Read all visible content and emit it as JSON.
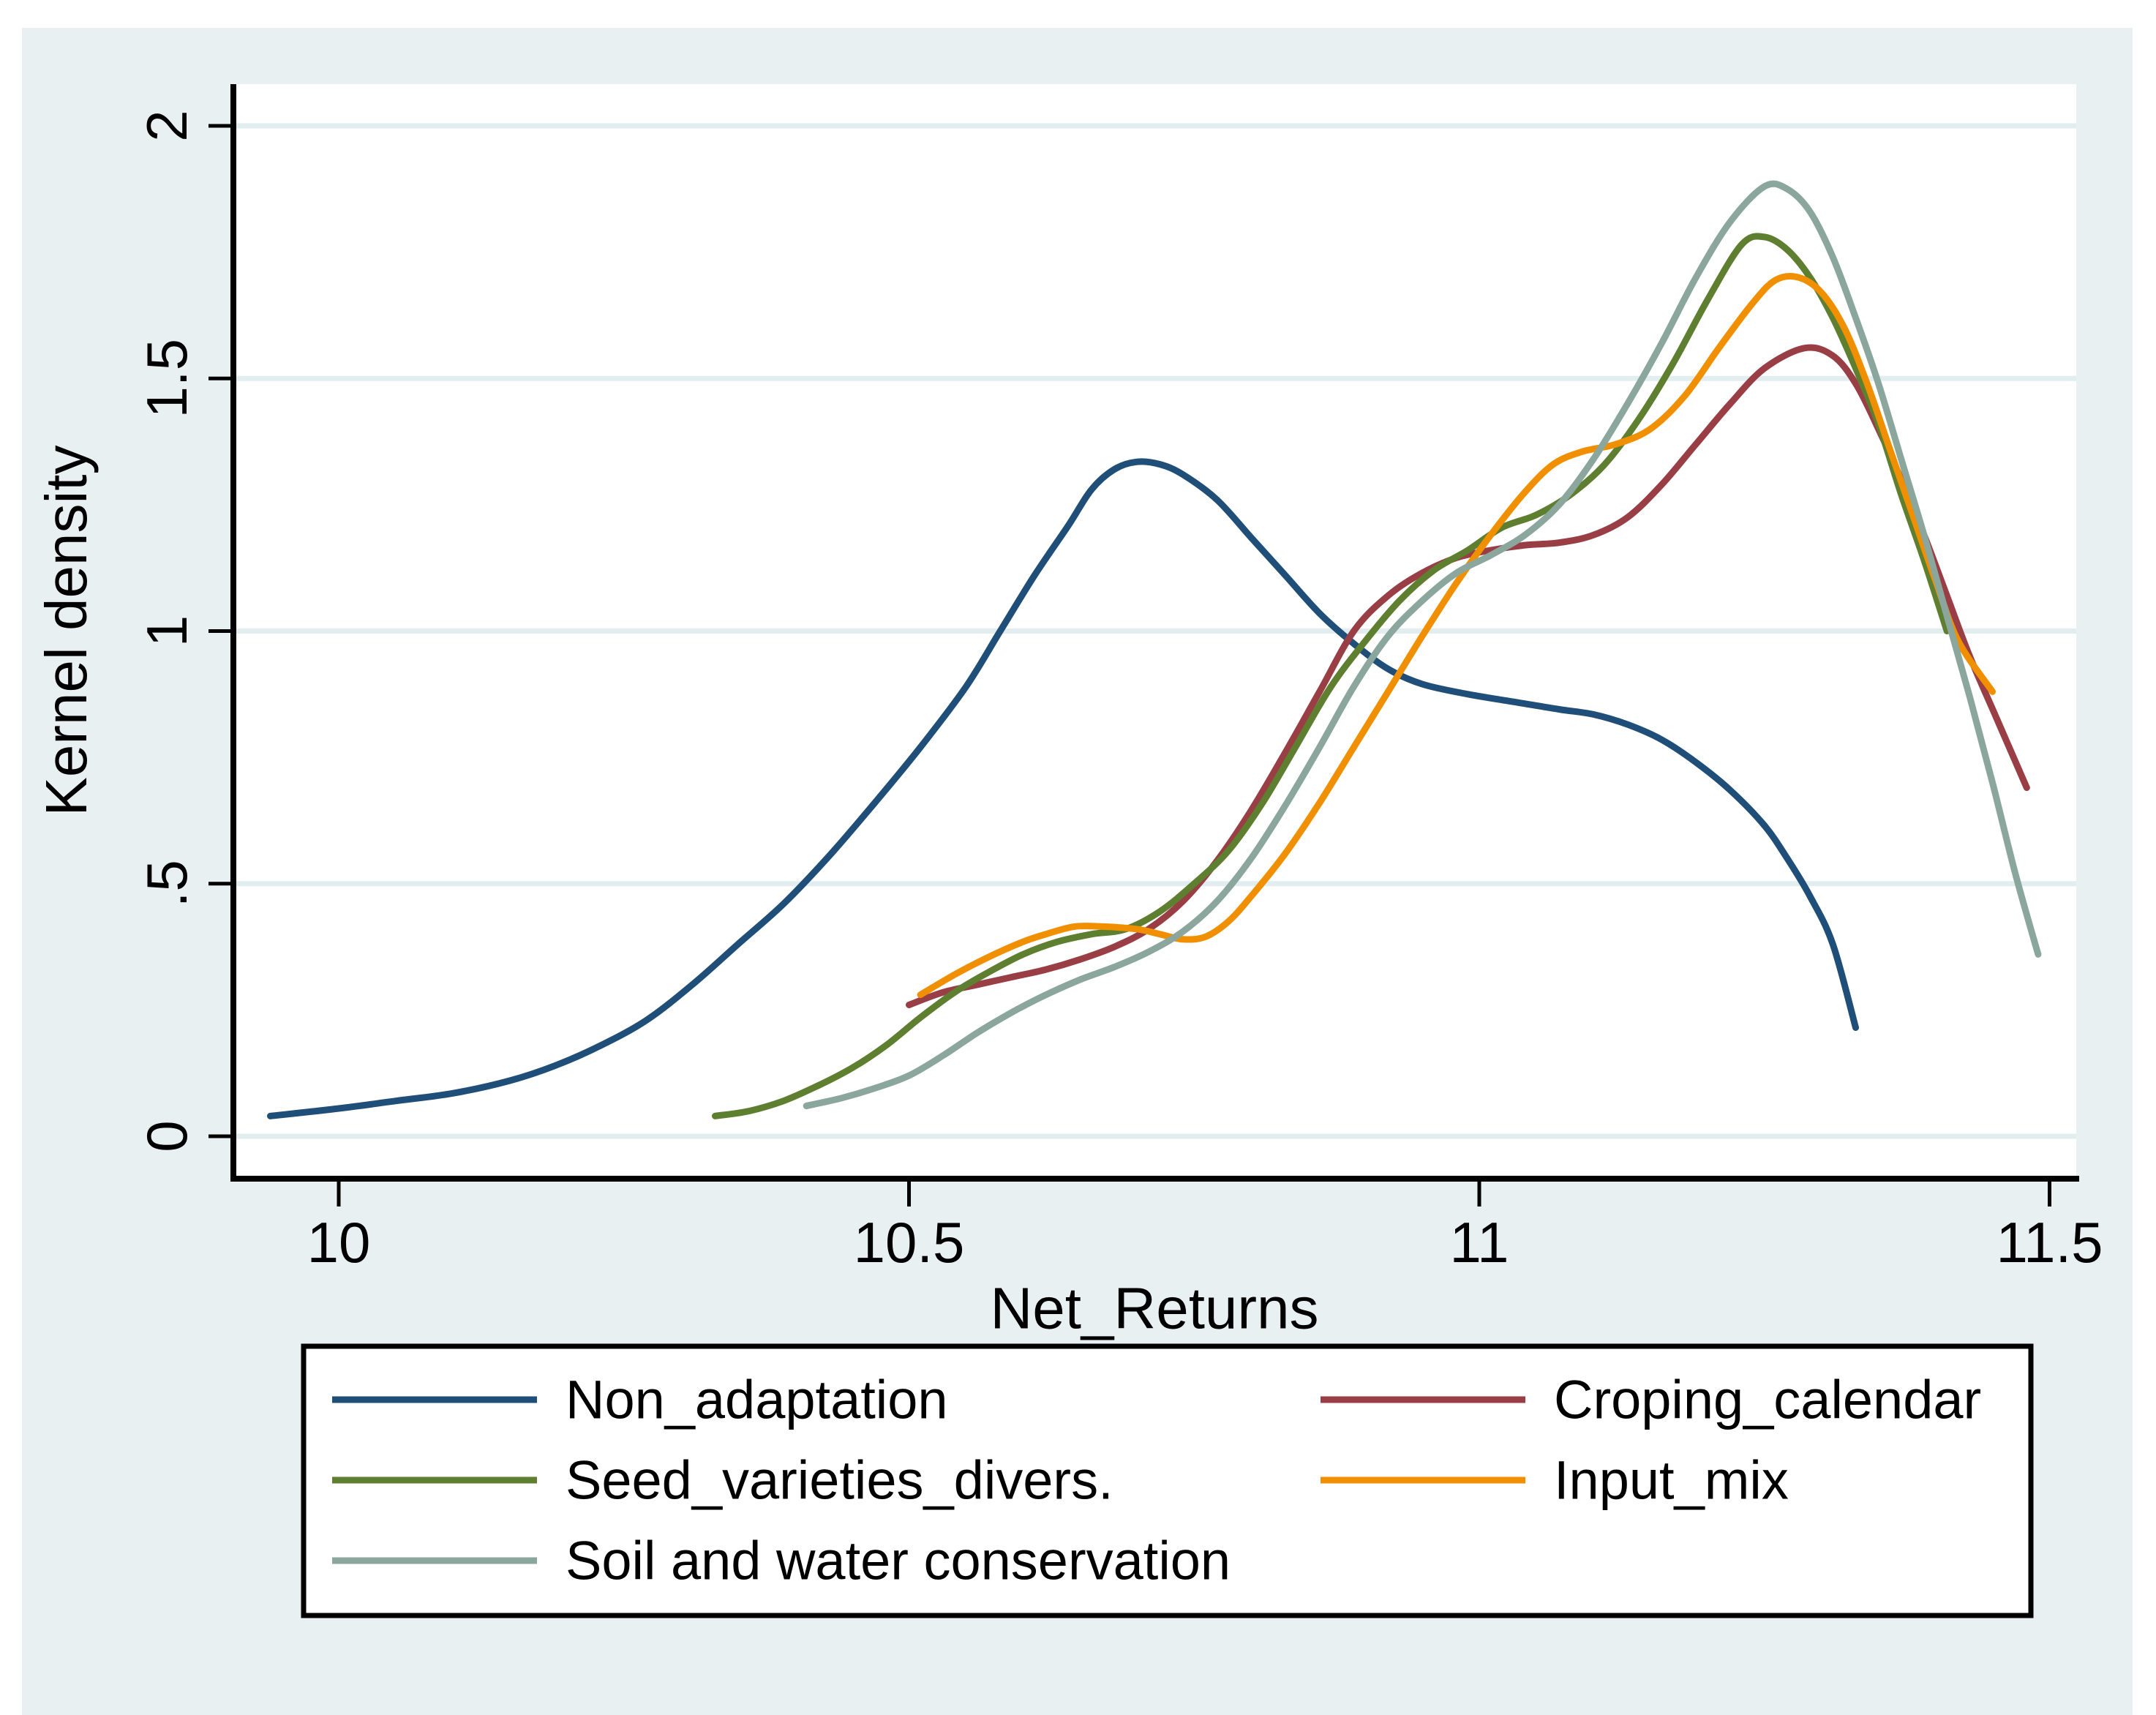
{
  "page": {
    "background": "#ffffff",
    "figure_bg": "#e9f0f2",
    "plot_bg": "#ffffff",
    "grid_color": "#e2edf0",
    "axis_color": "#000000",
    "text_color": "#000000",
    "legend_bg": "#ffffff",
    "legend_border": "#000000"
  },
  "chart_data": {
    "type": "line",
    "title": "",
    "xlabel": "Net_Returns",
    "ylabel": "Kernel density",
    "xlim": [
      9.91,
      11.52
    ],
    "ylim": [
      -0.08,
      2.08
    ],
    "grid": "horizontal gridlines at y ticks",
    "legend_position": "bottom",
    "xticks": {
      "values": [
        10,
        10.5,
        11,
        11.5
      ],
      "labels": [
        "10",
        "10.5",
        "11",
        "11.5"
      ]
    },
    "yticks": {
      "values": [
        0,
        0.5,
        1,
        1.5,
        2
      ],
      "labels": [
        "0",
        ".5",
        "1",
        "1.5",
        "2"
      ]
    },
    "series": [
      {
        "name": "Non_adaptation",
        "color": "#1f4e78",
        "points": [
          [
            9.94,
            0.04
          ],
          [
            10.0,
            0.055
          ],
          [
            10.05,
            0.07
          ],
          [
            10.1,
            0.085
          ],
          [
            10.15,
            0.11
          ],
          [
            10.19,
            0.14
          ],
          [
            10.23,
            0.18
          ],
          [
            10.27,
            0.23
          ],
          [
            10.31,
            0.3
          ],
          [
            10.35,
            0.38
          ],
          [
            10.39,
            0.46
          ],
          [
            10.43,
            0.555
          ],
          [
            10.47,
            0.66
          ],
          [
            10.51,
            0.77
          ],
          [
            10.55,
            0.89
          ],
          [
            10.58,
            1.0
          ],
          [
            10.61,
            1.11
          ],
          [
            10.64,
            1.21
          ],
          [
            10.66,
            1.28
          ],
          [
            10.68,
            1.32
          ],
          [
            10.7,
            1.335
          ],
          [
            10.72,
            1.33
          ],
          [
            10.74,
            1.31
          ],
          [
            10.77,
            1.26
          ],
          [
            10.8,
            1.185
          ],
          [
            10.83,
            1.11
          ],
          [
            10.86,
            1.035
          ],
          [
            10.89,
            0.975
          ],
          [
            10.92,
            0.925
          ],
          [
            10.95,
            0.895
          ],
          [
            10.99,
            0.875
          ],
          [
            11.03,
            0.86
          ],
          [
            11.07,
            0.845
          ],
          [
            11.1,
            0.835
          ],
          [
            11.13,
            0.815
          ],
          [
            11.16,
            0.785
          ],
          [
            11.19,
            0.74
          ],
          [
            11.22,
            0.685
          ],
          [
            11.25,
            0.615
          ],
          [
            11.27,
            0.55
          ],
          [
            11.29,
            0.475
          ],
          [
            11.31,
            0.38
          ],
          [
            11.33,
            0.215
          ]
        ]
      },
      {
        "name": "Croping_calendar",
        "color": "#9a3e45",
        "points": [
          [
            10.5,
            0.26
          ],
          [
            10.53,
            0.285
          ],
          [
            10.56,
            0.3
          ],
          [
            10.59,
            0.315
          ],
          [
            10.62,
            0.33
          ],
          [
            10.65,
            0.35
          ],
          [
            10.68,
            0.375
          ],
          [
            10.71,
            0.41
          ],
          [
            10.74,
            0.465
          ],
          [
            10.77,
            0.545
          ],
          [
            10.8,
            0.645
          ],
          [
            10.83,
            0.76
          ],
          [
            10.86,
            0.88
          ],
          [
            10.89,
            1.0
          ],
          [
            10.92,
            1.07
          ],
          [
            10.95,
            1.115
          ],
          [
            10.98,
            1.145
          ],
          [
            11.01,
            1.16
          ],
          [
            11.04,
            1.17
          ],
          [
            11.07,
            1.175
          ],
          [
            11.1,
            1.19
          ],
          [
            11.13,
            1.225
          ],
          [
            11.16,
            1.29
          ],
          [
            11.19,
            1.37
          ],
          [
            11.22,
            1.45
          ],
          [
            11.25,
            1.52
          ],
          [
            11.285,
            1.56
          ],
          [
            11.31,
            1.545
          ],
          [
            11.33,
            1.49
          ],
          [
            11.35,
            1.4
          ],
          [
            11.37,
            1.3
          ],
          [
            11.39,
            1.19
          ],
          [
            11.41,
            1.07
          ],
          [
            11.43,
            0.95
          ],
          [
            11.455,
            0.82
          ],
          [
            11.48,
            0.69
          ]
        ]
      },
      {
        "name": "Seed_varieties_divers.",
        "color": "#5d7f2f",
        "points": [
          [
            10.33,
            0.04
          ],
          [
            10.36,
            0.05
          ],
          [
            10.39,
            0.07
          ],
          [
            10.42,
            0.1
          ],
          [
            10.45,
            0.135
          ],
          [
            10.48,
            0.18
          ],
          [
            10.51,
            0.235
          ],
          [
            10.54,
            0.285
          ],
          [
            10.57,
            0.325
          ],
          [
            10.6,
            0.36
          ],
          [
            10.63,
            0.385
          ],
          [
            10.66,
            0.4
          ],
          [
            10.69,
            0.41
          ],
          [
            10.72,
            0.445
          ],
          [
            10.75,
            0.5
          ],
          [
            10.78,
            0.565
          ],
          [
            10.81,
            0.66
          ],
          [
            10.84,
            0.775
          ],
          [
            10.87,
            0.89
          ],
          [
            10.9,
            0.98
          ],
          [
            10.93,
            1.06
          ],
          [
            10.96,
            1.12
          ],
          [
            10.99,
            1.16
          ],
          [
            11.02,
            1.205
          ],
          [
            11.05,
            1.23
          ],
          [
            11.08,
            1.27
          ],
          [
            11.11,
            1.33
          ],
          [
            11.14,
            1.42
          ],
          [
            11.17,
            1.53
          ],
          [
            11.2,
            1.655
          ],
          [
            11.23,
            1.765
          ],
          [
            11.25,
            1.78
          ],
          [
            11.27,
            1.755
          ],
          [
            11.29,
            1.7
          ],
          [
            11.31,
            1.62
          ],
          [
            11.33,
            1.52
          ],
          [
            11.35,
            1.41
          ],
          [
            11.37,
            1.27
          ],
          [
            11.39,
            1.14
          ],
          [
            11.41,
            1.0
          ]
        ]
      },
      {
        "name": "Input_mix",
        "color": "#f09000",
        "points": [
          [
            10.51,
            0.28
          ],
          [
            10.54,
            0.32
          ],
          [
            10.57,
            0.355
          ],
          [
            10.6,
            0.385
          ],
          [
            10.62,
            0.4
          ],
          [
            10.645,
            0.415
          ],
          [
            10.67,
            0.415
          ],
          [
            10.7,
            0.41
          ],
          [
            10.72,
            0.4
          ],
          [
            10.74,
            0.39
          ],
          [
            10.76,
            0.395
          ],
          [
            10.78,
            0.425
          ],
          [
            10.8,
            0.475
          ],
          [
            10.83,
            0.56
          ],
          [
            10.86,
            0.66
          ],
          [
            10.89,
            0.77
          ],
          [
            10.92,
            0.88
          ],
          [
            10.95,
            0.99
          ],
          [
            10.98,
            1.095
          ],
          [
            11.01,
            1.19
          ],
          [
            11.04,
            1.275
          ],
          [
            11.065,
            1.33
          ],
          [
            11.09,
            1.355
          ],
          [
            11.12,
            1.37
          ],
          [
            11.15,
            1.4
          ],
          [
            11.18,
            1.465
          ],
          [
            11.21,
            1.56
          ],
          [
            11.24,
            1.65
          ],
          [
            11.26,
            1.695
          ],
          [
            11.28,
            1.7
          ],
          [
            11.3,
            1.67
          ],
          [
            11.32,
            1.6
          ],
          [
            11.34,
            1.49
          ],
          [
            11.36,
            1.36
          ],
          [
            11.38,
            1.23
          ],
          [
            11.4,
            1.1
          ],
          [
            11.42,
            0.98
          ],
          [
            11.45,
            0.88
          ]
        ]
      },
      {
        "name": "Soil and water conservation",
        "color": "#8ba69c",
        "points": [
          [
            10.41,
            0.06
          ],
          [
            10.44,
            0.075
          ],
          [
            10.47,
            0.095
          ],
          [
            10.5,
            0.12
          ],
          [
            10.53,
            0.16
          ],
          [
            10.56,
            0.205
          ],
          [
            10.59,
            0.245
          ],
          [
            10.62,
            0.28
          ],
          [
            10.65,
            0.31
          ],
          [
            10.68,
            0.335
          ],
          [
            10.71,
            0.365
          ],
          [
            10.74,
            0.405
          ],
          [
            10.77,
            0.465
          ],
          [
            10.8,
            0.55
          ],
          [
            10.83,
            0.655
          ],
          [
            10.86,
            0.77
          ],
          [
            10.89,
            0.89
          ],
          [
            10.92,
            0.99
          ],
          [
            10.95,
            1.06
          ],
          [
            10.98,
            1.115
          ],
          [
            11.01,
            1.15
          ],
          [
            11.04,
            1.19
          ],
          [
            11.07,
            1.25
          ],
          [
            11.1,
            1.34
          ],
          [
            11.13,
            1.45
          ],
          [
            11.16,
            1.57
          ],
          [
            11.19,
            1.7
          ],
          [
            11.22,
            1.81
          ],
          [
            11.25,
            1.88
          ],
          [
            11.27,
            1.875
          ],
          [
            11.29,
            1.83
          ],
          [
            11.31,
            1.74
          ],
          [
            11.33,
            1.62
          ],
          [
            11.35,
            1.49
          ],
          [
            11.37,
            1.34
          ],
          [
            11.39,
            1.19
          ],
          [
            11.41,
            1.03
          ],
          [
            11.43,
            0.87
          ],
          [
            11.45,
            0.7
          ],
          [
            11.47,
            0.52
          ],
          [
            11.49,
            0.36
          ]
        ]
      }
    ]
  },
  "legend": {
    "items": [
      {
        "label": "Non_adaptation"
      },
      {
        "label": "Croping_calendar"
      },
      {
        "label": "Seed_varieties_divers."
      },
      {
        "label": "Input_mix"
      },
      {
        "label": "Soil and water conservation"
      }
    ]
  }
}
